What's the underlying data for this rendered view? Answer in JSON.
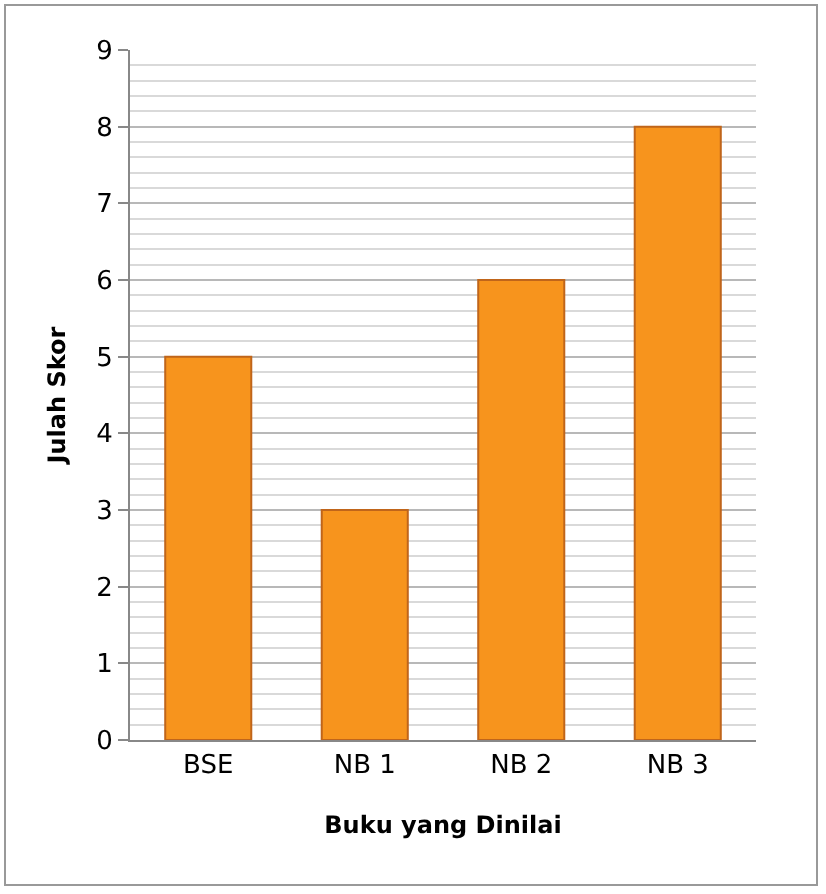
{
  "chart_data": {
    "type": "bar",
    "xlabel": "Buku yang Dinilai",
    "ylabel": "Julah Skor",
    "categories": [
      "BSE",
      "NB 1",
      "NB 2",
      "NB 3"
    ],
    "values": [
      5,
      3,
      6,
      8
    ],
    "color": "#f7941d",
    "ylim": [
      0,
      9
    ],
    "yticks": [
      0,
      1,
      2,
      3,
      4,
      5,
      6,
      7,
      8,
      9
    ],
    "grid": "y"
  }
}
